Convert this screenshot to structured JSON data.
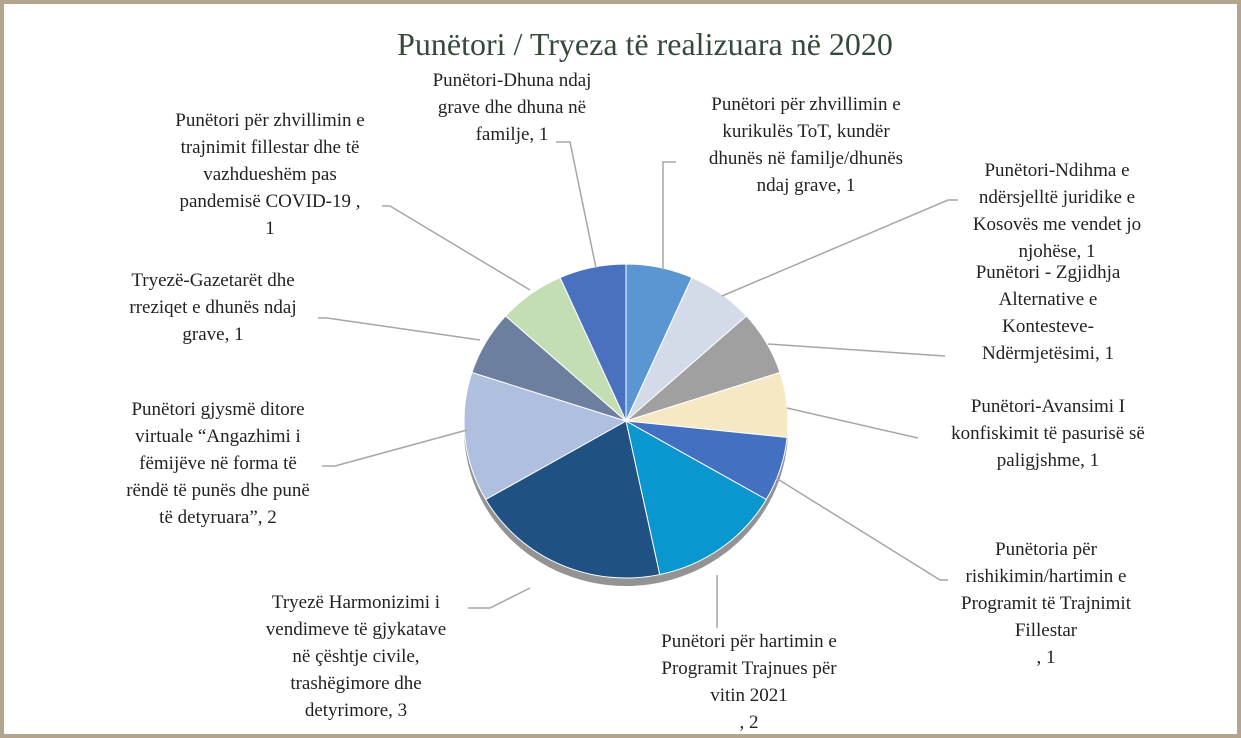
{
  "chart_data": {
    "type": "pie",
    "title": "Punëtori / Tryeza të realizuara në 2020",
    "categories": [
      "Punëtori për zhvillimin e kurikulës ToT, kundër dhunës në familje/dhunës ndaj grave",
      "Punëtori-Ndihma e ndërsjelltë juridike e Kosovës me vendet jo njohëse",
      "Punëtori - Zgjidhja Alternative e Kontesteve-Ndërmjetësimi",
      "Punëtori-Avansimi I konfiskimit të pasurisë së paligjshme",
      "Punëtoria për rishikimin/hartimin e Programit të Trajnimit Fillestar",
      "Punëtori për hartimin e Programit Trajnues për vitin 2021",
      "Tryezë Harmonizimi i vendimeve të gjykatave në çështje civile, trashëgimore dhe detyrimore",
      "Punëtori gjysmë ditore virtuale “Angazhimi i fëmijëve në forma të rëndë të punës dhe punë të detyruara”",
      "Tryezë-Gazetarët dhe rreziqet e dhunës ndaj grave",
      "Punëtori për zhvillimin e trajnimit fillestar dhe të vazhdueshëm pas pandemisë COVID-19",
      "Punëtori-Dhuna ndaj grave dhe dhuna në familje"
    ],
    "values": [
      1,
      1,
      1,
      1,
      1,
      2,
      3,
      2,
      1,
      1,
      1
    ],
    "labels": [
      [
        "Punëtori për zhvillimin e",
        "kurikulës ToT, kundër",
        "dhunës në familje/dhunës",
        "ndaj grave, 1"
      ],
      [
        "Punëtori-Ndihma e",
        "ndërsjelltë juridike e",
        "Kosovës me vendet jo",
        "njohëse, 1"
      ],
      [
        "Punëtori - Zgjidhja",
        "Alternative e",
        "Kontesteve-",
        "Ndërmjetësimi, 1"
      ],
      [
        "Punëtori-Avansimi I",
        "konfiskimit të pasurisë së",
        "paligjshme, 1"
      ],
      [
        "Punëtoria për",
        "rishikimin/hartimin e",
        "Programit të Trajnimit",
        "Fillestar",
        ", 1"
      ],
      [
        "Punëtori për hartimin e",
        "Programit Trajnues për",
        "vitin 2021",
        ", 2"
      ],
      [
        "Tryezë Harmonizimi i",
        "vendimeve të gjykatave",
        "në çështje civile,",
        "trashëgimore dhe",
        "detyrimore, 3"
      ],
      [
        "Punëtori gjysmë ditore",
        "virtuale “Angazhimi i",
        "fëmijëve në forma të",
        "rëndë të punës dhe punë",
        "të detyruara”, 2"
      ],
      [
        "Tryezë-Gazetarët dhe",
        "rreziqet e dhunës ndaj",
        "grave, 1"
      ],
      [
        "Punëtori për zhvillimin e",
        "trajnimit fillestar dhe të",
        "vazhdueshëm pas",
        "pandemisë COVID-19 ,",
        "1"
      ],
      [
        "Punëtori-Dhuna ndaj",
        "grave dhe dhuna në",
        "familje, 1"
      ]
    ],
    "colors": [
      "#5a97d2",
      "#d3dbe8",
      "#a0a0a0",
      "#f6e8c4",
      "#4470c2",
      "#0a97cf",
      "#1f5283",
      "#aebfe0",
      "#6c7f9e",
      "#c4deb4",
      "#4a70c0"
    ]
  }
}
